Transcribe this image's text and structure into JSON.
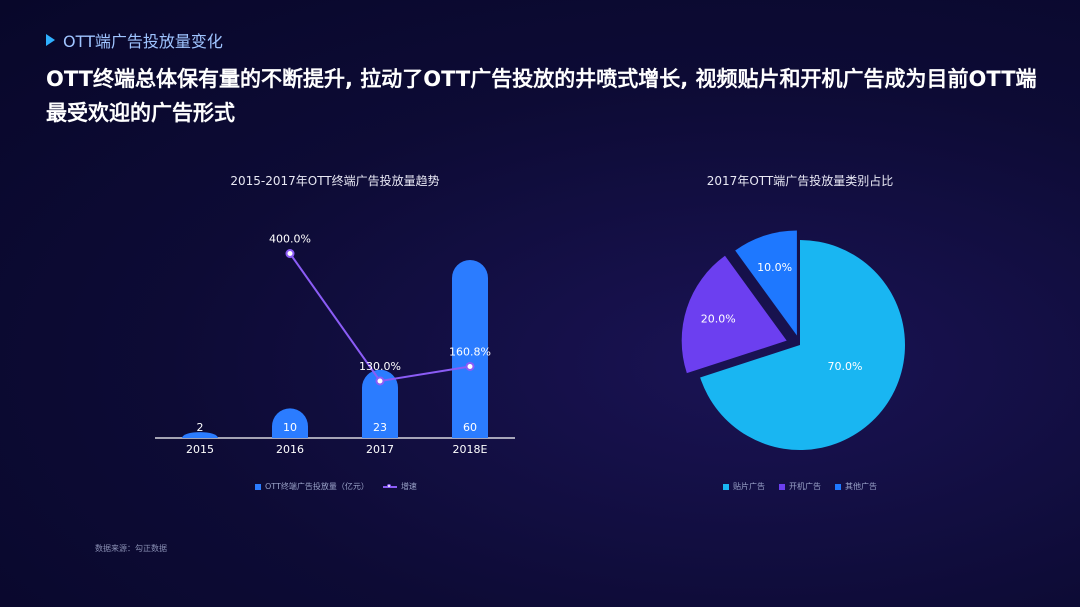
{
  "section_label": "OTT端广告投放量变化",
  "headline": "OTT终端总体保有量的不断提升, 拉动了OTT广告投放的井喷式增长, 视频贴片和开机广告成为目前OTT端最受欢迎的广告形式",
  "source": "数据来源：勾正数据",
  "colors": {
    "bar": "#2b7cff",
    "line": "#8b5cf6",
    "pie_main": "#19b6f2",
    "pie_second": "#6c3ff0",
    "pie_third": "#1e78ff"
  },
  "chart_data": [
    {
      "type": "bar",
      "title": "2015-2017年OTT终端广告投放量趋势",
      "categories": [
        "2015",
        "2016",
        "2017",
        "2018E"
      ],
      "series": [
        {
          "name": "OTT终端广告投放量（亿元）",
          "values": [
            2,
            10,
            23,
            60
          ],
          "labels": [
            "2",
            "10",
            "23",
            "60"
          ]
        },
        {
          "name": "增速",
          "type": "line",
          "values": [
            null,
            400.0,
            130.0,
            160.8
          ],
          "labels": [
            "",
            "400.0%",
            "130.0%",
            "160.8%"
          ]
        }
      ],
      "legend": "bottom"
    },
    {
      "type": "pie",
      "title": "2017年OTT端广告投放量类别占比",
      "slices": [
        {
          "name": "贴片广告",
          "value": 70.0,
          "label": "70.0%"
        },
        {
          "name": "开机广告",
          "value": 20.0,
          "label": "20.0%"
        },
        {
          "name": "其他广告",
          "value": 10.0,
          "label": "10.0%"
        }
      ],
      "legend": "bottom"
    }
  ]
}
